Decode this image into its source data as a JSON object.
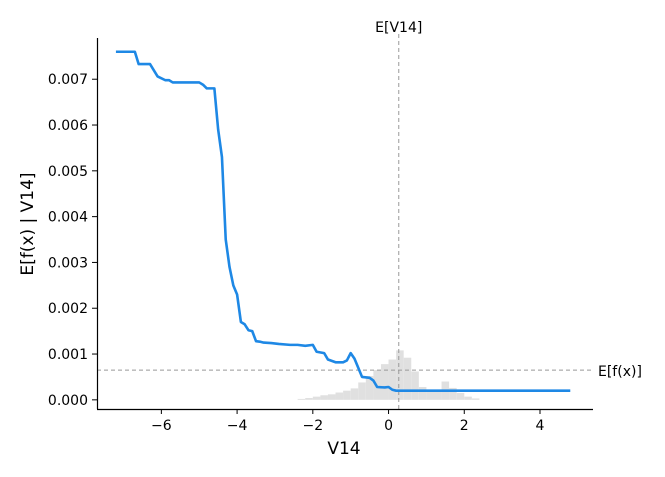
{
  "chart_data": {
    "type": "line",
    "title": "",
    "xlabel": "V14",
    "ylabel": "E[f(x) | V14]",
    "xlim": [
      -7.7,
      5.4
    ],
    "ylim": [
      -0.0002,
      0.0079
    ],
    "x_ticks": [
      -6,
      -4,
      -2,
      0,
      2,
      4
    ],
    "x_tick_labels": [
      "−6",
      "−4",
      "−2",
      "0",
      "2",
      "4"
    ],
    "y_ticks": [
      0.0,
      0.001,
      0.002,
      0.003,
      0.004,
      0.005,
      0.006,
      0.007
    ],
    "y_tick_labels": [
      "0.000",
      "0.001",
      "0.002",
      "0.003",
      "0.004",
      "0.005",
      "0.006",
      "0.007"
    ],
    "grid": false,
    "colors": {
      "line": "#1e88e5",
      "reference": "#999999",
      "histogram": "#e0e0e0"
    },
    "series": [
      {
        "x": [
          -7.2,
          -6.7,
          -6.6,
          -6.3,
          -6.1,
          -5.9,
          -5.8,
          -5.7,
          -5.4,
          -5.0,
          -4.9,
          -4.8,
          -4.6,
          -4.5,
          -4.4,
          -4.3,
          -4.2,
          -4.1,
          -4.0,
          -3.9,
          -3.8,
          -3.7,
          -3.6,
          -3.5,
          -3.4,
          -3.3,
          -3.1,
          -2.9,
          -2.6,
          -2.4,
          -2.2,
          -2.0,
          -1.9,
          -1.7,
          -1.6,
          -1.4,
          -1.2,
          -1.1,
          -1.0,
          -0.9,
          -0.8,
          -0.7,
          -0.5,
          -0.4,
          -0.3,
          -0.1,
          0.0,
          0.1,
          0.2,
          0.4,
          0.6,
          0.8,
          1.0,
          1.5,
          2.0,
          3.0,
          4.0,
          4.8
        ],
        "y": [
          0.0076,
          0.0076,
          0.00733,
          0.00733,
          0.00706,
          0.00698,
          0.00698,
          0.00693,
          0.00693,
          0.00693,
          0.00688,
          0.0068,
          0.0068,
          0.0059,
          0.0053,
          0.0035,
          0.0029,
          0.0025,
          0.0023,
          0.0017,
          0.00165,
          0.00152,
          0.0015,
          0.00128,
          0.00127,
          0.00125,
          0.00124,
          0.00122,
          0.0012,
          0.0012,
          0.00118,
          0.0012,
          0.00105,
          0.00102,
          0.00088,
          0.00082,
          0.00082,
          0.00086,
          0.00102,
          0.0009,
          0.0007,
          0.0005,
          0.00048,
          0.00042,
          0.00028,
          0.00027,
          0.00028,
          0.00022,
          0.0002,
          0.0002,
          0.0002,
          0.0002,
          0.0002,
          0.0002,
          0.0002,
          0.0002,
          0.0002,
          0.0002
        ]
      }
    ],
    "reference_lines": {
      "vertical": {
        "x": 0.27,
        "label": "E[V14]"
      },
      "horizontal": {
        "y": 0.00065,
        "label": "E[f(x)]"
      }
    },
    "histogram": {
      "bin_edges": [
        -2.4,
        -2.2,
        -2.0,
        -1.8,
        -1.6,
        -1.4,
        -1.2,
        -1.0,
        -0.8,
        -0.6,
        -0.4,
        -0.2,
        0.0,
        0.2,
        0.4,
        0.6,
        0.8,
        1.0,
        1.2,
        1.4,
        1.6,
        1.8,
        2.0,
        2.2,
        2.4
      ],
      "heights": [
        2e-05,
        4e-05,
        7e-05,
        0.0001,
        0.00012,
        0.00016,
        0.0002,
        0.00025,
        0.00038,
        0.00052,
        0.00065,
        0.00078,
        0.00088,
        0.00108,
        0.00092,
        0.00062,
        0.00028,
        0.00022,
        0.00018,
        0.0004,
        0.00026,
        0.00015,
        7e-05,
        3e-05
      ]
    }
  }
}
